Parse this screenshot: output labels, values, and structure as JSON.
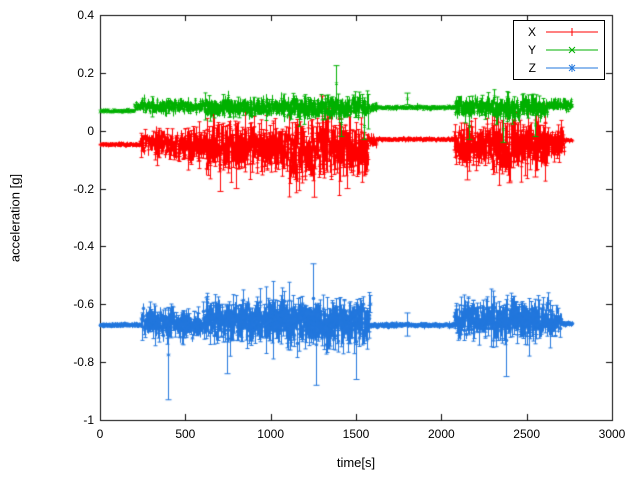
{
  "chart_data": {
    "type": "scatter",
    "style": "points-with-errorbars",
    "title": "",
    "xlabel": "time[s]",
    "ylabel": "acceleration [g]",
    "xlim": [
      0,
      3000
    ],
    "ylim": [
      -1,
      0.4
    ],
    "x_ticks": [
      "0",
      "500",
      "1000",
      "1500",
      "2000",
      "2500",
      "3000"
    ],
    "y_ticks": [
      "0.4",
      "0.2",
      "0",
      "-0.2",
      "-0.4",
      "-0.6",
      "-0.8",
      "-1"
    ],
    "grid": false,
    "legend": {
      "position": "top-right",
      "box": true
    },
    "axis_color": "#000000",
    "series": [
      {
        "name": "X",
        "color": "#ff0000",
        "marker": "plus",
        "segments": [
          [
            0,
            235,
            -0.048,
            0.005
          ],
          [
            235,
            320,
            -0.045,
            0.03
          ],
          [
            320,
            620,
            -0.05,
            0.045
          ],
          [
            620,
            1060,
            -0.06,
            0.07
          ],
          [
            1060,
            1340,
            -0.065,
            0.085
          ],
          [
            1340,
            1570,
            -0.06,
            0.08
          ],
          [
            1570,
            1620,
            -0.04,
            0.02
          ],
          [
            1620,
            2075,
            -0.03,
            0.005
          ],
          [
            2075,
            2300,
            -0.05,
            0.06
          ],
          [
            2300,
            2480,
            -0.06,
            0.08
          ],
          [
            2480,
            2620,
            -0.055,
            0.07
          ],
          [
            2620,
            2720,
            -0.04,
            0.045
          ],
          [
            2720,
            2765,
            -0.033,
            0.005
          ]
        ],
        "spikes": [
          [
            705,
            -0.21,
            -0.05
          ],
          [
            795,
            -0.2,
            -0.06
          ],
          [
            1255,
            -0.23,
            -0.07
          ],
          [
            1298,
            -0.02,
            0.12
          ],
          [
            1445,
            -0.2,
            -0.05
          ],
          [
            2150,
            -0.17,
            -0.03
          ],
          [
            2395,
            -0.18,
            -0.04
          ],
          [
            2550,
            -0.16,
            -0.03
          ]
        ]
      },
      {
        "name": "Y",
        "color": "#00b000",
        "marker": "cross",
        "segments": [
          [
            0,
            200,
            0.068,
            0.006
          ],
          [
            200,
            235,
            0.085,
            0.012
          ],
          [
            235,
            620,
            0.085,
            0.022
          ],
          [
            620,
            1060,
            0.08,
            0.03
          ],
          [
            1060,
            1570,
            0.08,
            0.035
          ],
          [
            1570,
            1620,
            0.08,
            0.015
          ],
          [
            1620,
            2075,
            0.08,
            0.006
          ],
          [
            2075,
            2300,
            0.08,
            0.03
          ],
          [
            2300,
            2480,
            0.075,
            0.04
          ],
          [
            2480,
            2620,
            0.08,
            0.035
          ],
          [
            2620,
            2765,
            0.088,
            0.018
          ]
        ],
        "spikes": [
          [
            1385,
            0.1,
            0.225
          ],
          [
            1415,
            -0.02,
            0.07
          ],
          [
            1545,
            -0.03,
            0.06
          ],
          [
            1800,
            0.09,
            0.13
          ],
          [
            2160,
            -0.03,
            0.06
          ],
          [
            2360,
            -0.04,
            0.05
          ],
          [
            2550,
            -0.02,
            0.06
          ]
        ]
      },
      {
        "name": "Z",
        "color": "#2277dd",
        "marker": "asterisk",
        "segments": [
          [
            0,
            240,
            -0.672,
            0.006
          ],
          [
            240,
            620,
            -0.668,
            0.045
          ],
          [
            620,
            1080,
            -0.655,
            0.065
          ],
          [
            1080,
            1340,
            -0.67,
            0.075
          ],
          [
            1340,
            1580,
            -0.665,
            0.07
          ],
          [
            1580,
            2075,
            -0.672,
            0.007
          ],
          [
            2075,
            2300,
            -0.655,
            0.055
          ],
          [
            2300,
            2480,
            -0.66,
            0.065
          ],
          [
            2480,
            2640,
            -0.655,
            0.06
          ],
          [
            2640,
            2700,
            -0.66,
            0.04
          ],
          [
            2700,
            2765,
            -0.668,
            0.006
          ]
        ],
        "spikes": [
          [
            400,
            -0.93,
            -0.62
          ],
          [
            745,
            -0.84,
            -0.6
          ],
          [
            1250,
            -0.7,
            -0.46
          ],
          [
            1265,
            -0.88,
            -0.6
          ],
          [
            1500,
            -0.86,
            -0.6
          ],
          [
            1800,
            -0.71,
            -0.63
          ],
          [
            2380,
            -0.85,
            -0.6
          ]
        ]
      }
    ]
  }
}
